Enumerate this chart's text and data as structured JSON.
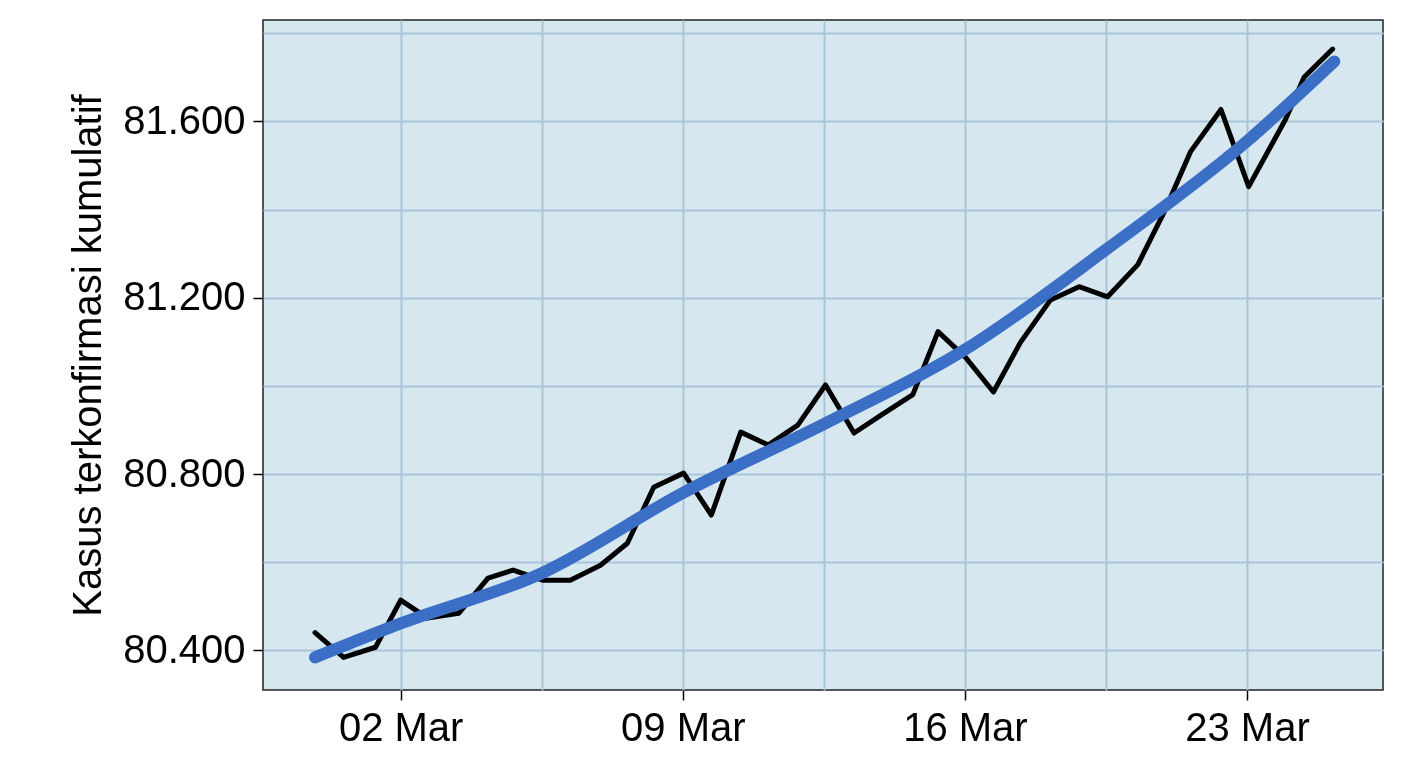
{
  "chart_data": {
    "type": "line",
    "ylabel": "Kasus terkonfirmasi kumulatif",
    "xlim": [
      "--02-27T14:00",
      "--03-26T09:00"
    ],
    "xticks": [
      {
        "value": "--03-02",
        "label": "02 Mar"
      },
      {
        "value": "--03-05T12:00",
        "label": null
      },
      {
        "value": "--03-09",
        "label": "09 Mar"
      },
      {
        "value": "--03-12T12:00",
        "label": null
      },
      {
        "value": "--03-16",
        "label": "16 Mar"
      },
      {
        "value": "--03-19T12:00",
        "label": null
      },
      {
        "value": "--03-23",
        "label": "23 Mar"
      }
    ],
    "ylim": [
      80310,
      81830
    ],
    "yticks": [
      {
        "value": 80400,
        "label": "80.400"
      },
      {
        "value": 80600,
        "label": null
      },
      {
        "value": 80800,
        "label": "80.800"
      },
      {
        "value": 81000,
        "label": null
      },
      {
        "value": 81200,
        "label": "81.200"
      },
      {
        "value": 81400,
        "label": null
      },
      {
        "value": 81600,
        "label": "81.600"
      },
      {
        "value": 81800,
        "label": null
      }
    ],
    "grid": true,
    "series": [
      {
        "color": "#000000",
        "x": [
          "--02-28T21:00",
          "--02-29T14:00",
          "--03-01T09:00",
          "--03-02T00:00",
          "--03-02T16:00",
          "--03-03T10:30",
          "--03-04T04:00",
          "--03-04T19:00",
          "--03-05T12:30",
          "--03-06T05:00",
          "--03-06T23:00",
          "--03-07T15:00",
          "--03-08T06:40",
          "--03-09T00:30",
          "--03-09T17:00",
          "--03-10T10:30",
          "--03-11T03:00",
          "--03-11T20:30",
          "--03-12T13:00",
          "--03-13T06:00",
          "--03-13T23:00",
          "--03-14T17:00",
          "--03-15T08:00",
          "--03-16T00:30",
          "--03-16T17:00",
          "--03-17T09:00",
          "--03-18T03:00",
          "--03-18T20:00",
          "--03-19T13:00",
          "--03-20T07:00",
          "--03-20T22:00",
          "--03-21T14:30",
          "--03-22T08:30",
          "--03-23T01:00",
          "--03-23T23:00",
          "--03-24T10:00",
          "--03-25T03:00"
        ],
        "values": [
          80440,
          80384,
          80407,
          80514,
          80473,
          80484,
          80564,
          80582,
          80559,
          80559,
          80593,
          80643,
          80770,
          80802,
          80707,
          80895,
          80866,
          80911,
          81002,
          80893,
          80936,
          80980,
          81123,
          81064,
          80986,
          81098,
          81195,
          81225,
          81202,
          81275,
          81389,
          81532,
          81627,
          81452,
          81605,
          81700,
          81764
        ]
      },
      {
        "color": "#3b6fc6",
        "x": [
          "--02-28T21:00",
          "--03-02T00:00",
          "--03-05T12:00",
          "--03-09T00:00",
          "--03-12T12:00",
          "--03-16T00:00",
          "--03-19T12:00",
          "--03-23T00:00",
          "--03-25T04:00"
        ],
        "values": [
          80384,
          80461,
          80575,
          80757,
          80913,
          81082,
          81309,
          81555,
          81736
        ]
      }
    ]
  }
}
